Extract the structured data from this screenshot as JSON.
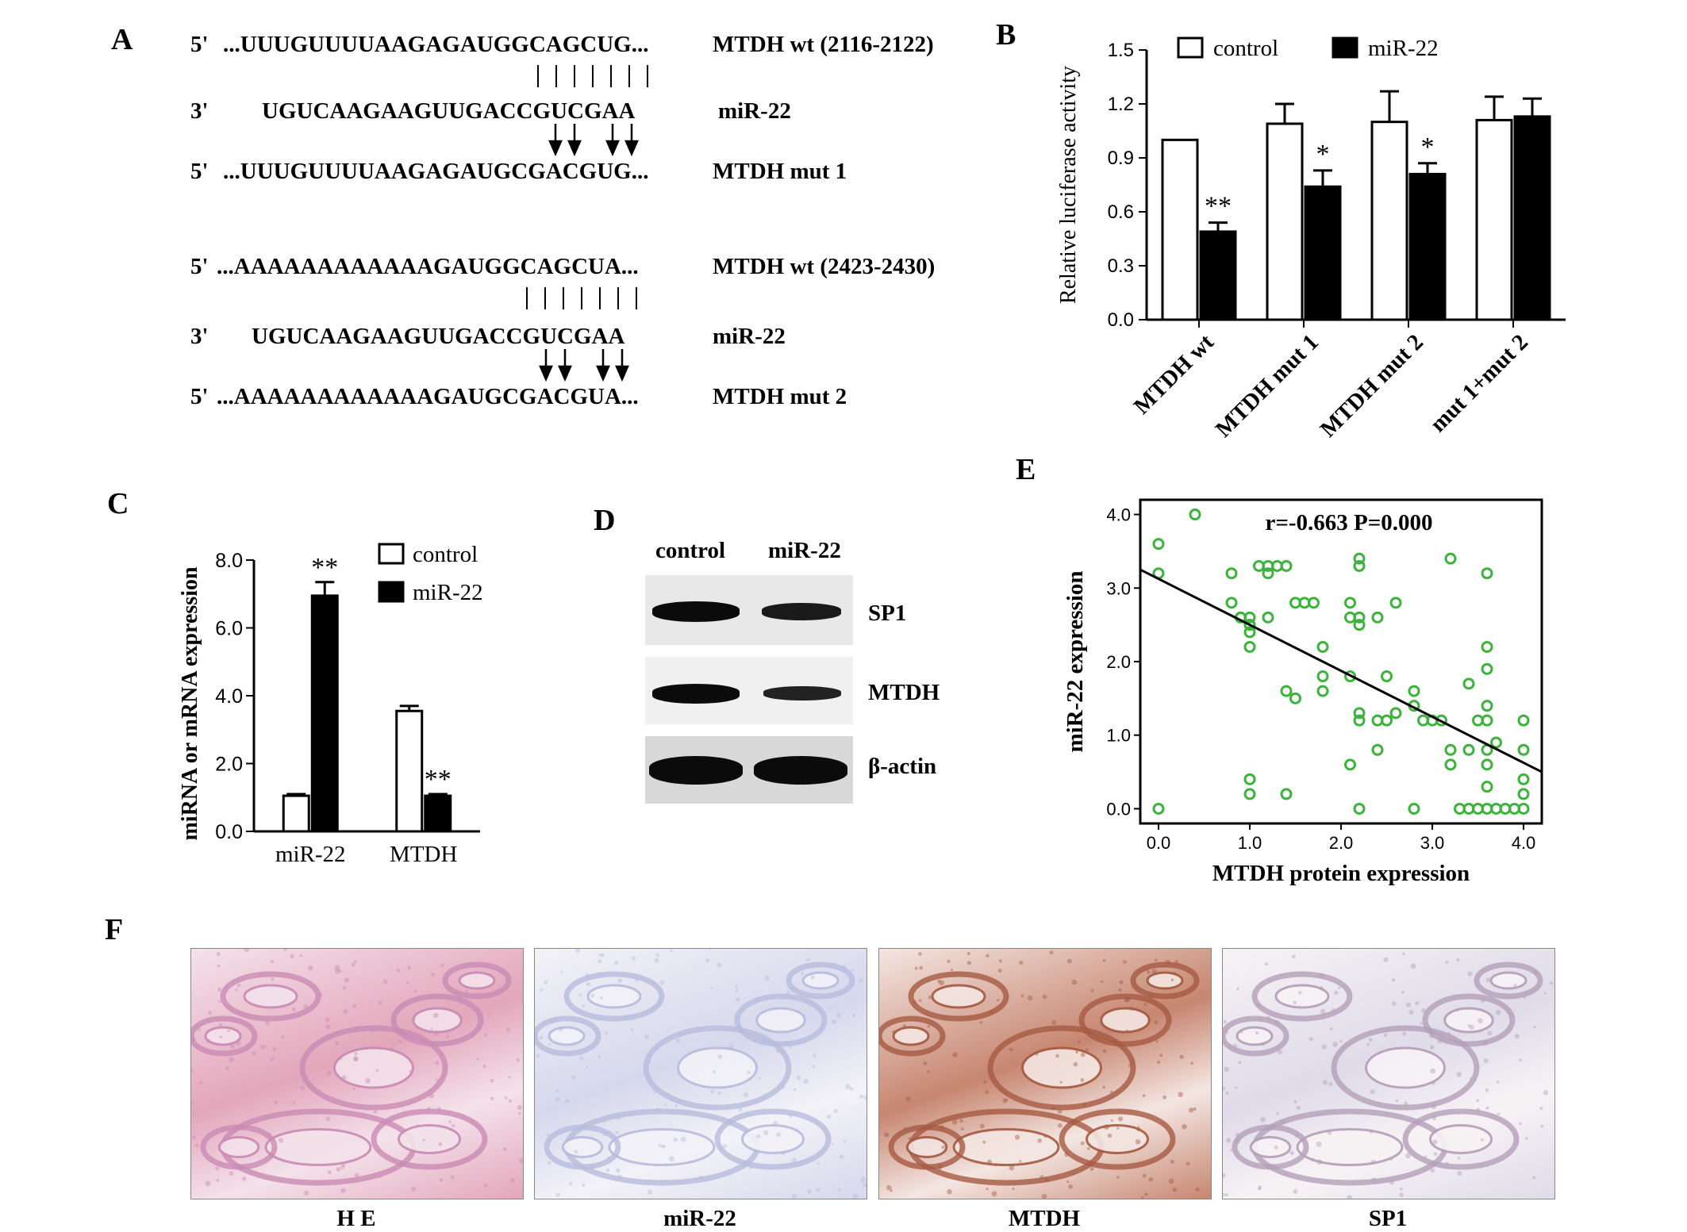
{
  "panels": {
    "A": "A",
    "B": "B",
    "C": "C",
    "D": "D",
    "E": "E",
    "F": "F"
  },
  "panelA": {
    "block1": [
      {
        "end": "5'",
        "seq": "...UUUGUUUUAAGAGAUGGCAGCUG...",
        "label": "MTDH wt (2116-2122)"
      },
      {
        "end": "3'",
        "seq": "UGUCAAGAAGUUGACCGUCGAA",
        "label": "miR-22"
      },
      {
        "end": "5'",
        "seq": "...UUUGUUUUAAGAGAUGCGACGUG...",
        "label": "MTDH mut 1"
      }
    ],
    "block2": [
      {
        "end": "5'",
        "seq": "...AAAAAAAAAAAAGAUGGCAGCUA...",
        "label": "MTDH wt (2423-2430)"
      },
      {
        "end": "3'",
        "seq": "UGUCAAGAAGUUGACCGUCGAA",
        "label": "miR-22"
      },
      {
        "end": "5'",
        "seq": "...AAAAAAAAAAAAGAUGCGACGUA...",
        "label": "MTDH mut 2"
      }
    ]
  },
  "chart_data": [
    {
      "panel": "B",
      "type": "bar",
      "ylabel": "Relative luciferase activity",
      "ylim": [
        0,
        1.5
      ],
      "yticks": [
        "0.0",
        "0.3",
        "0.6",
        "0.9",
        "1.2",
        "1.5"
      ],
      "categories": [
        "MTDH wt",
        "MTDH mut 1",
        "MTDH mut 2",
        "mut 1+mut 2"
      ],
      "series": [
        {
          "name": "control",
          "color": "#ffffff",
          "values": [
            1.0,
            1.09,
            1.1,
            1.11
          ],
          "errors": [
            0,
            0.11,
            0.17,
            0.13
          ]
        },
        {
          "name": "miR-22",
          "color": "#000000",
          "values": [
            0.49,
            0.74,
            0.81,
            1.13
          ],
          "errors": [
            0.05,
            0.09,
            0.06,
            0.1
          ]
        }
      ],
      "annotations": [
        "**",
        "*",
        "*",
        ""
      ],
      "legend": "top"
    },
    {
      "panel": "C",
      "type": "bar",
      "ylabel": "miRNA or mRNA expression",
      "ylim": [
        0,
        8
      ],
      "yticks": [
        "0.0",
        "2.0",
        "4.0",
        "6.0",
        "8.0"
      ],
      "categories": [
        "miR-22",
        "MTDH"
      ],
      "series": [
        {
          "name": "control",
          "color": "#ffffff",
          "values": [
            1.05,
            3.55
          ],
          "errors": [
            0.05,
            0.15
          ]
        },
        {
          "name": "miR-22",
          "color": "#000000",
          "values": [
            6.95,
            1.05
          ],
          "errors": [
            0.4,
            0.05
          ]
        }
      ],
      "annotations": [
        "**",
        "**"
      ],
      "legend": "top-right"
    },
    {
      "panel": "E",
      "type": "scatter",
      "xlabel": "MTDH protein expression",
      "ylabel": "miR-22 expression",
      "xlim": [
        -0.2,
        4.2
      ],
      "ylim": [
        -0.2,
        4.2
      ],
      "xticks": [
        "0.0",
        "1.0",
        "2.0",
        "3.0",
        "4.0"
      ],
      "yticks": [
        "0.0",
        "1.0",
        "2.0",
        "3.0",
        "4.0"
      ],
      "stat": "r=-0.663   P=0.000",
      "fit": {
        "x0": -0.2,
        "y0": 3.25,
        "x1": 4.2,
        "y1": 0.5
      },
      "point_color": "#3cb33c",
      "points": [
        [
          0.0,
          3.6
        ],
        [
          0.0,
          3.2
        ],
        [
          0.4,
          4.0
        ],
        [
          0.0,
          0.0
        ],
        [
          0.8,
          3.2
        ],
        [
          0.8,
          2.8
        ],
        [
          0.9,
          2.6
        ],
        [
          1.0,
          2.6
        ],
        [
          1.0,
          2.5
        ],
        [
          1.0,
          2.4
        ],
        [
          1.0,
          2.2
        ],
        [
          1.0,
          0.4
        ],
        [
          1.0,
          0.2
        ],
        [
          1.1,
          3.3
        ],
        [
          1.2,
          3.2
        ],
        [
          1.2,
          3.3
        ],
        [
          1.3,
          3.3
        ],
        [
          1.4,
          3.3
        ],
        [
          1.2,
          2.6
        ],
        [
          1.5,
          2.8
        ],
        [
          1.6,
          2.8
        ],
        [
          1.7,
          2.8
        ],
        [
          1.4,
          1.6
        ],
        [
          1.5,
          1.5
        ],
        [
          1.4,
          0.2
        ],
        [
          1.8,
          2.2
        ],
        [
          1.8,
          1.8
        ],
        [
          1.8,
          1.6
        ],
        [
          2.1,
          2.8
        ],
        [
          2.1,
          2.6
        ],
        [
          2.2,
          3.4
        ],
        [
          2.2,
          3.3
        ],
        [
          2.2,
          2.6
        ],
        [
          2.2,
          2.5
        ],
        [
          2.1,
          1.8
        ],
        [
          2.2,
          1.3
        ],
        [
          2.2,
          1.2
        ],
        [
          2.1,
          0.6
        ],
        [
          2.2,
          0.0
        ],
        [
          2.4,
          2.6
        ],
        [
          2.5,
          1.8
        ],
        [
          2.4,
          1.2
        ],
        [
          2.5,
          1.2
        ],
        [
          2.6,
          1.3
        ],
        [
          2.4,
          0.8
        ],
        [
          2.6,
          2.8
        ],
        [
          2.8,
          1.6
        ],
        [
          2.8,
          1.4
        ],
        [
          2.9,
          1.2
        ],
        [
          3.0,
          1.2
        ],
        [
          3.1,
          1.2
        ],
        [
          2.8,
          0.0
        ],
        [
          3.2,
          3.4
        ],
        [
          3.2,
          0.8
        ],
        [
          3.2,
          0.6
        ],
        [
          3.3,
          0.0
        ],
        [
          3.4,
          0.0
        ],
        [
          3.5,
          0.0
        ],
        [
          3.6,
          0.0
        ],
        [
          3.4,
          1.7
        ],
        [
          3.4,
          0.8
        ],
        [
          3.5,
          1.2
        ],
        [
          3.6,
          3.2
        ],
        [
          3.6,
          2.2
        ],
        [
          3.6,
          1.9
        ],
        [
          3.6,
          1.4
        ],
        [
          3.6,
          1.2
        ],
        [
          3.6,
          0.8
        ],
        [
          3.6,
          0.6
        ],
        [
          3.6,
          0.3
        ],
        [
          3.7,
          0.9
        ],
        [
          3.7,
          0.0
        ],
        [
          3.8,
          0.0
        ],
        [
          3.9,
          0.0
        ],
        [
          4.0,
          1.2
        ],
        [
          4.0,
          0.8
        ],
        [
          4.0,
          0.4
        ],
        [
          4.0,
          0.2
        ],
        [
          4.0,
          0.0
        ],
        [
          1.0,
          2.5
        ],
        [
          0.9,
          2.6
        ]
      ]
    }
  ],
  "panelD": {
    "lanes": [
      "control",
      "miR-22"
    ],
    "bands": [
      {
        "label": "SP1",
        "intensity": [
          1.0,
          0.8
        ]
      },
      {
        "label": "MTDH",
        "intensity": [
          1.0,
          0.65
        ]
      },
      {
        "label": "β-actin",
        "intensity": [
          1.0,
          1.0
        ]
      }
    ]
  },
  "panelF": {
    "images": [
      {
        "label": "H E",
        "colors": [
          "#e3a6bb",
          "#c98bb4",
          "#f4e2ea"
        ]
      },
      {
        "label": "miR-22",
        "colors": [
          "#d6d8ec",
          "#b8bcdc",
          "#f3f2f8"
        ]
      },
      {
        "label": "MTDH",
        "colors": [
          "#c78670",
          "#a55a42",
          "#f4e6e2"
        ]
      },
      {
        "label": "SP1",
        "colors": [
          "#dfdbe9",
          "#b49fb9",
          "#f7f3f5"
        ]
      }
    ]
  }
}
